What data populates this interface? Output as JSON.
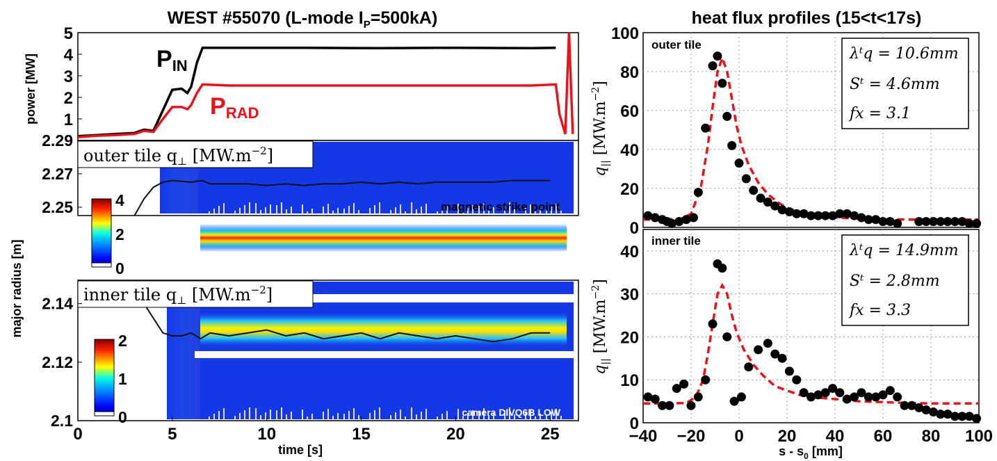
{
  "left_title": "WEST #55070 (L-mode I",
  "left_title_sub": "P",
  "left_title_tail": "=500kA)",
  "right_title": "heat flux profiles (15<t<17s)",
  "time_label": "time [s]",
  "s_label": "s - s",
  "s_label_sub": "0",
  "s_label_tail": " [mm]",
  "power_ylabel": "power [MW]",
  "radius_ylabel": "major radius [m]",
  "outer_map_label": "outer tile q",
  "inner_map_label": "inner tile q",
  "map_unit": "[MW.m",
  "map_unit_exp": "−2",
  "map_unit_close": "]",
  "strike_label": "magnetic strike point",
  "camera_label": "camera DIVQ6B LOW",
  "pin_label": "P",
  "pin_sub": "IN",
  "prad_label": "P",
  "prad_sub": "RAD",
  "outer_tile_label": "outer tile",
  "inner_tile_label": "inner tile",
  "q_ylabel": "q",
  "q_ylabel_sub": "||",
  "q_unit": "[MW.m",
  "q_unit_exp": "−2",
  "q_unit_close": "]",
  "outer_params": [
    "λᵗq = 10.6mm",
    "Sᵗ = 4.6mm",
    "fx = 3.1"
  ],
  "inner_params": [
    "λᵗq = 14.9mm",
    "Sᵗ = 2.8mm",
    "fx = 3.3"
  ],
  "colors": {
    "pin": "#000000",
    "prad": "#e8141b",
    "fit": "#e8141b",
    "map_bg": "#1030e0"
  },
  "chart_data": [
    {
      "type": "line",
      "title": "WEST #55070 (L-mode IP=500kA)",
      "ylabel": "power [MW]",
      "xlim": [
        0,
        26.5
      ],
      "ylim": [
        0,
        5
      ],
      "yticks": [
        1,
        2,
        3,
        4,
        5
      ],
      "series": [
        {
          "name": "PIN",
          "x": [
            0,
            1,
            2,
            3,
            3.5,
            4,
            4.5,
            5,
            5.5,
            5.8,
            6,
            6.3,
            6.6,
            8,
            12,
            16,
            20,
            24,
            25.3
          ],
          "y": [
            0.2,
            0.25,
            0.3,
            0.35,
            0.5,
            0.45,
            1.4,
            2.35,
            2.4,
            2.2,
            2.5,
            3.6,
            4.3,
            4.3,
            4.3,
            4.28,
            4.3,
            4.28,
            4.3
          ]
        },
        {
          "name": "PRAD",
          "x": [
            0,
            1,
            2,
            3,
            3.5,
            4,
            4.5,
            5,
            5.5,
            5.8,
            6,
            6.3,
            6.6,
            8,
            12,
            16,
            20,
            24,
            25.3,
            25.5,
            25.8,
            26.0,
            26.2
          ],
          "y": [
            0.15,
            0.22,
            0.25,
            0.3,
            0.45,
            0.4,
            1.0,
            1.55,
            1.55,
            1.45,
            1.65,
            2.2,
            2.6,
            2.55,
            2.55,
            2.55,
            2.55,
            2.55,
            2.6,
            1.2,
            0.3,
            5.0,
            0.3
          ]
        }
      ]
    },
    {
      "type": "heatmap",
      "title": "outer tile q⊥ [MW.m-2]",
      "ylabel": "major radius [m]",
      "xlim": [
        0,
        26.5
      ],
      "ylim": [
        2.245,
        2.29
      ],
      "yticks": [
        2.25,
        2.27,
        2.29
      ],
      "colorbar": {
        "min": 0,
        "max": 4,
        "ticks": [
          0,
          2,
          4
        ]
      },
      "peak_radius": 2.257,
      "annotation": "magnetic strike point",
      "strike_point": {
        "x": [
          3.0,
          3.5,
          4.0,
          4.5,
          5,
          6,
          6.6,
          7,
          8,
          9,
          10,
          11,
          12,
          13,
          14,
          15,
          16,
          17,
          18,
          19,
          20,
          21,
          22,
          23,
          24,
          25
        ],
        "y": [
          2.245,
          2.255,
          2.262,
          2.265,
          2.266,
          2.265,
          2.266,
          2.264,
          2.264,
          2.264,
          2.263,
          2.264,
          2.263,
          2.264,
          2.264,
          2.265,
          2.264,
          2.265,
          2.264,
          2.265,
          2.265,
          2.265,
          2.265,
          2.266,
          2.266,
          2.266
        ]
      }
    },
    {
      "type": "heatmap",
      "title": "inner tile q⊥ [MW.m-2]",
      "xlabel": "time [s]",
      "xlim": [
        0,
        26.5
      ],
      "ylim": [
        2.1,
        2.148
      ],
      "yticks": [
        2.1,
        2.12,
        2.14
      ],
      "xticks": [
        0,
        5,
        10,
        15,
        20,
        25
      ],
      "colorbar": {
        "min": 0,
        "max": 2,
        "ticks": [
          0,
          1,
          2
        ]
      },
      "peak_radius": 2.133,
      "annotation": "camera DIVQ6B LOW",
      "strike_point": {
        "x": [
          3.5,
          4.0,
          4.5,
          5,
          5.5,
          6,
          6.5,
          7,
          8,
          9,
          10,
          11,
          12,
          13,
          14,
          15,
          16,
          17,
          18,
          19,
          20,
          21,
          22,
          23,
          24,
          25
        ],
        "y": [
          2.14,
          2.135,
          2.13,
          2.129,
          2.129,
          2.13,
          2.128,
          2.13,
          2.129,
          2.13,
          2.131,
          2.129,
          2.13,
          2.128,
          2.129,
          2.13,
          2.128,
          2.13,
          2.129,
          2.128,
          2.129,
          2.128,
          2.127,
          2.128,
          2.13,
          2.13
        ]
      }
    },
    {
      "type": "scatter",
      "title": "heat flux profiles (15<t<17s)",
      "ylabel": "q|| [MW.m-2]",
      "annotation": "outer tile",
      "xlim": [
        -40,
        100
      ],
      "ylim": [
        0,
        100
      ],
      "yticks": [
        0,
        20,
        40,
        60,
        80,
        100
      ],
      "series": [
        {
          "name": "measured",
          "x": [
            -38,
            -35,
            -32,
            -30,
            -28,
            -25,
            -22,
            -19,
            -17,
            -14,
            -11,
            -9,
            -7,
            -5,
            -3,
            0,
            3,
            6,
            9,
            12,
            15,
            18,
            21,
            24,
            27,
            30,
            33,
            36,
            39,
            42,
            45,
            48,
            51,
            54,
            57,
            60,
            63,
            66,
            75,
            78,
            81,
            84,
            87,
            90,
            93,
            96,
            99
          ],
          "y": [
            6,
            5,
            4,
            3,
            2,
            3,
            4,
            5,
            18,
            51,
            83,
            88,
            74,
            57,
            42,
            33,
            25,
            19,
            15,
            13,
            11,
            9,
            8,
            7,
            7,
            6,
            6,
            6,
            6,
            7,
            7,
            6,
            5,
            4,
            4,
            3,
            3,
            2,
            3,
            3,
            3,
            3,
            3,
            3,
            3,
            2,
            2
          ]
        },
        {
          "name": "fit",
          "x": [
            -40,
            -30,
            -24,
            -20,
            -16,
            -13,
            -11,
            -9,
            -7,
            -5,
            -3,
            -1,
            1,
            4,
            8,
            12,
            16,
            20,
            25,
            30,
            40,
            50,
            60,
            70,
            80,
            90,
            100
          ],
          "y": [
            4,
            4,
            4.5,
            7,
            20,
            42,
            62,
            80,
            87,
            80,
            66,
            52,
            42,
            32,
            23,
            17,
            13,
            10,
            8,
            6.5,
            5,
            4.5,
            4.2,
            4,
            4,
            4,
            4
          ]
        }
      ]
    },
    {
      "type": "scatter",
      "ylabel": "q|| [MW.m-2]",
      "xlabel": "s - s0 [mm]",
      "annotation": "inner tile",
      "xlim": [
        -40,
        100
      ],
      "ylim": [
        0,
        45
      ],
      "yticks": [
        0,
        10,
        20,
        30,
        40
      ],
      "xticks": [
        -40,
        -20,
        0,
        20,
        40,
        60,
        80,
        100
      ],
      "series": [
        {
          "name": "measured",
          "x": [
            -38,
            -35,
            -32,
            -29,
            -26,
            -23,
            -20,
            -17,
            -14,
            -11,
            -9,
            -7,
            -5,
            -2,
            1,
            4,
            8,
            12,
            15,
            18,
            21,
            24,
            27,
            30,
            33,
            36,
            39,
            42,
            45,
            48,
            51,
            54,
            57,
            60,
            63,
            66,
            69,
            72,
            75,
            78,
            81,
            84,
            87,
            90,
            93,
            96,
            99
          ],
          "y": [
            6,
            5.5,
            4,
            4,
            8,
            9,
            4,
            6,
            10,
            23,
            37,
            36,
            20,
            5,
            6,
            13,
            17,
            18.5,
            16,
            15,
            12,
            10,
            7,
            6,
            6.5,
            7,
            8,
            7,
            5.5,
            6,
            7,
            6,
            6,
            6.5,
            7.5,
            6,
            4,
            4,
            3.5,
            3,
            2.5,
            2,
            2,
            1.5,
            1.5,
            1.5,
            1
          ]
        },
        {
          "name": "fit",
          "x": [
            -40,
            -30,
            -22,
            -18,
            -15,
            -13,
            -11,
            -9,
            -7,
            -5,
            -3,
            -1,
            2,
            6,
            10,
            15,
            20,
            25,
            30,
            40,
            50,
            60,
            70,
            80,
            90,
            100
          ],
          "y": [
            4.5,
            4.5,
            4.6,
            6,
            10,
            16,
            23,
            30,
            32,
            30,
            25,
            21,
            17,
            13.5,
            11,
            8.5,
            7.5,
            6.5,
            6,
            5.5,
            5,
            4.8,
            4.6,
            4.5,
            4.5,
            4.5
          ]
        }
      ]
    }
  ]
}
